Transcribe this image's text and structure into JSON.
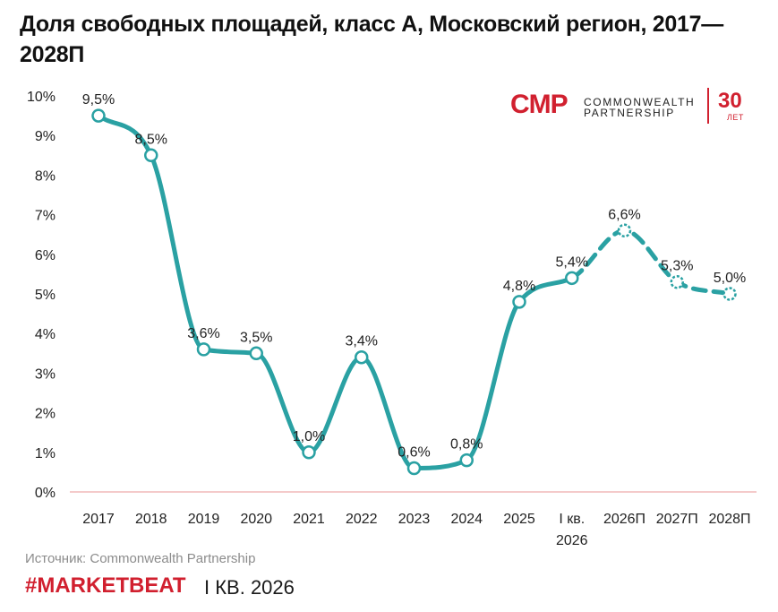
{
  "title": "Доля свободных площадей, класс А, Московский регион, 2017—2028П",
  "logo": {
    "mark": "CMP",
    "name_line1": "COMMONWEALTH",
    "name_line2": "PARTNERSHIP",
    "years": "30",
    "years_suffix": "ЛЕТ"
  },
  "source": "Источник: Commonwealth Partnership",
  "footer": {
    "hashtag": "#MARKETBEAT",
    "period": "I КВ. 2026"
  },
  "colors": {
    "line": "#2aa1a3",
    "brand": "#d1202f",
    "axis": "#f0b8b8"
  },
  "chart_data": {
    "type": "line",
    "title": "Доля свободных площадей, класс А, Московский регион, 2017—2028П",
    "categories": [
      "2017",
      "2018",
      "2019",
      "2020",
      "2021",
      "2022",
      "2023",
      "2024",
      "2025",
      "I кв. 2026",
      "2026П",
      "2027П",
      "2028П"
    ],
    "values": [
      9.5,
      8.5,
      3.6,
      3.5,
      1.0,
      3.4,
      0.6,
      0.8,
      4.8,
      5.4,
      6.6,
      5.3,
      5.0
    ],
    "labels": [
      "9,5%",
      "8,5%",
      "3,6%",
      "3,5%",
      "1,0%",
      "3,4%",
      "0,6%",
      "0,8%",
      "4,8%",
      "5,4%",
      "6,6%",
      "5,3%",
      "5,0%"
    ],
    "forecast_from_index": 9,
    "ylim": [
      0,
      10
    ],
    "yticks": [
      "0%",
      "1%",
      "2%",
      "3%",
      "4%",
      "5%",
      "6%",
      "7%",
      "8%",
      "9%",
      "10%"
    ],
    "grid": false,
    "legend": "none"
  }
}
